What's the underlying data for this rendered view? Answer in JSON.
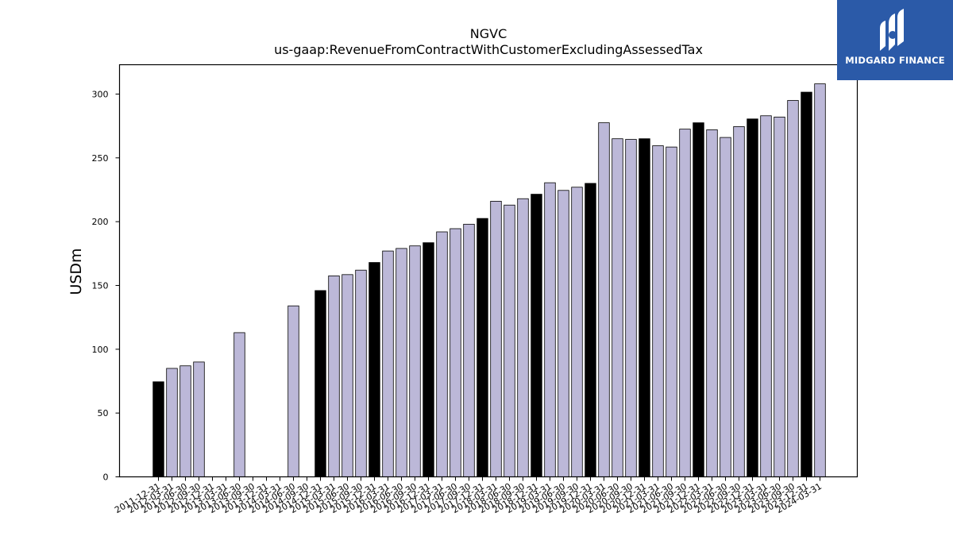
{
  "chart_data": {
    "type": "bar",
    "title": "NGVC",
    "subtitle": "us-gaap:RevenueFromContractWithCustomerExcludingAssessedTax",
    "xlabel": "",
    "ylabel": "USDm",
    "ylim": [
      0,
      323
    ],
    "yticks": [
      0,
      50,
      100,
      150,
      200,
      250,
      300
    ],
    "grid": false,
    "colors": {
      "annual": "#000000",
      "quarterly": "#bcb8d8",
      "edge": "#000000"
    },
    "categories": [
      "2011-12-31",
      "2012-03-31",
      "2012-06-30",
      "2012-09-30",
      "2012-12-31",
      "2013-03-31",
      "2013-06-30",
      "2013-09-30",
      "2013-12-31",
      "2014-03-31",
      "2014-06-30",
      "2014-09-30",
      "2014-12-31",
      "2015-03-31",
      "2015-06-30",
      "2015-09-30",
      "2015-12-31",
      "2016-03-31",
      "2016-06-30",
      "2016-09-30",
      "2016-12-31",
      "2017-03-31",
      "2017-06-30",
      "2017-09-30",
      "2017-12-31",
      "2018-03-31",
      "2018-06-30",
      "2018-09-30",
      "2018-12-31",
      "2019-03-31",
      "2019-06-30",
      "2019-09-30",
      "2019-12-31",
      "2020-03-31",
      "2020-06-30",
      "2020-09-30",
      "2020-12-31",
      "2021-03-31",
      "2021-06-30",
      "2021-09-30",
      "2021-12-31",
      "2022-03-31",
      "2022-06-30",
      "2022-09-30",
      "2022-12-31",
      "2023-03-31",
      "2023-06-30",
      "2023-09-30",
      "2023-12-31",
      "2024-03-31"
    ],
    "values": [
      74.5,
      85,
      87,
      90,
      null,
      null,
      113,
      null,
      null,
      null,
      134,
      null,
      146,
      157.5,
      158.5,
      162,
      168,
      177,
      179,
      181,
      183.5,
      192,
      194.5,
      198,
      202.5,
      216,
      213,
      218,
      221.5,
      230.5,
      224.5,
      227,
      230,
      277.5,
      265,
      264.5,
      265,
      259.5,
      258.5,
      272.5,
      277.5,
      272,
      266,
      274.5,
      280.5,
      283,
      282,
      295,
      301.5,
      308
    ],
    "annual_flags": [
      1,
      0,
      0,
      0,
      0,
      0,
      0,
      0,
      0,
      0,
      0,
      0,
      1,
      0,
      0,
      0,
      1,
      0,
      0,
      0,
      1,
      0,
      0,
      0,
      1,
      0,
      0,
      0,
      1,
      0,
      0,
      0,
      1,
      0,
      0,
      0,
      1,
      0,
      0,
      0,
      1,
      0,
      0,
      0,
      1,
      0,
      0,
      0,
      1,
      0
    ]
  },
  "logo": {
    "text": "MIDGARD FINANCE",
    "icon": "midgard-logo-icon"
  }
}
